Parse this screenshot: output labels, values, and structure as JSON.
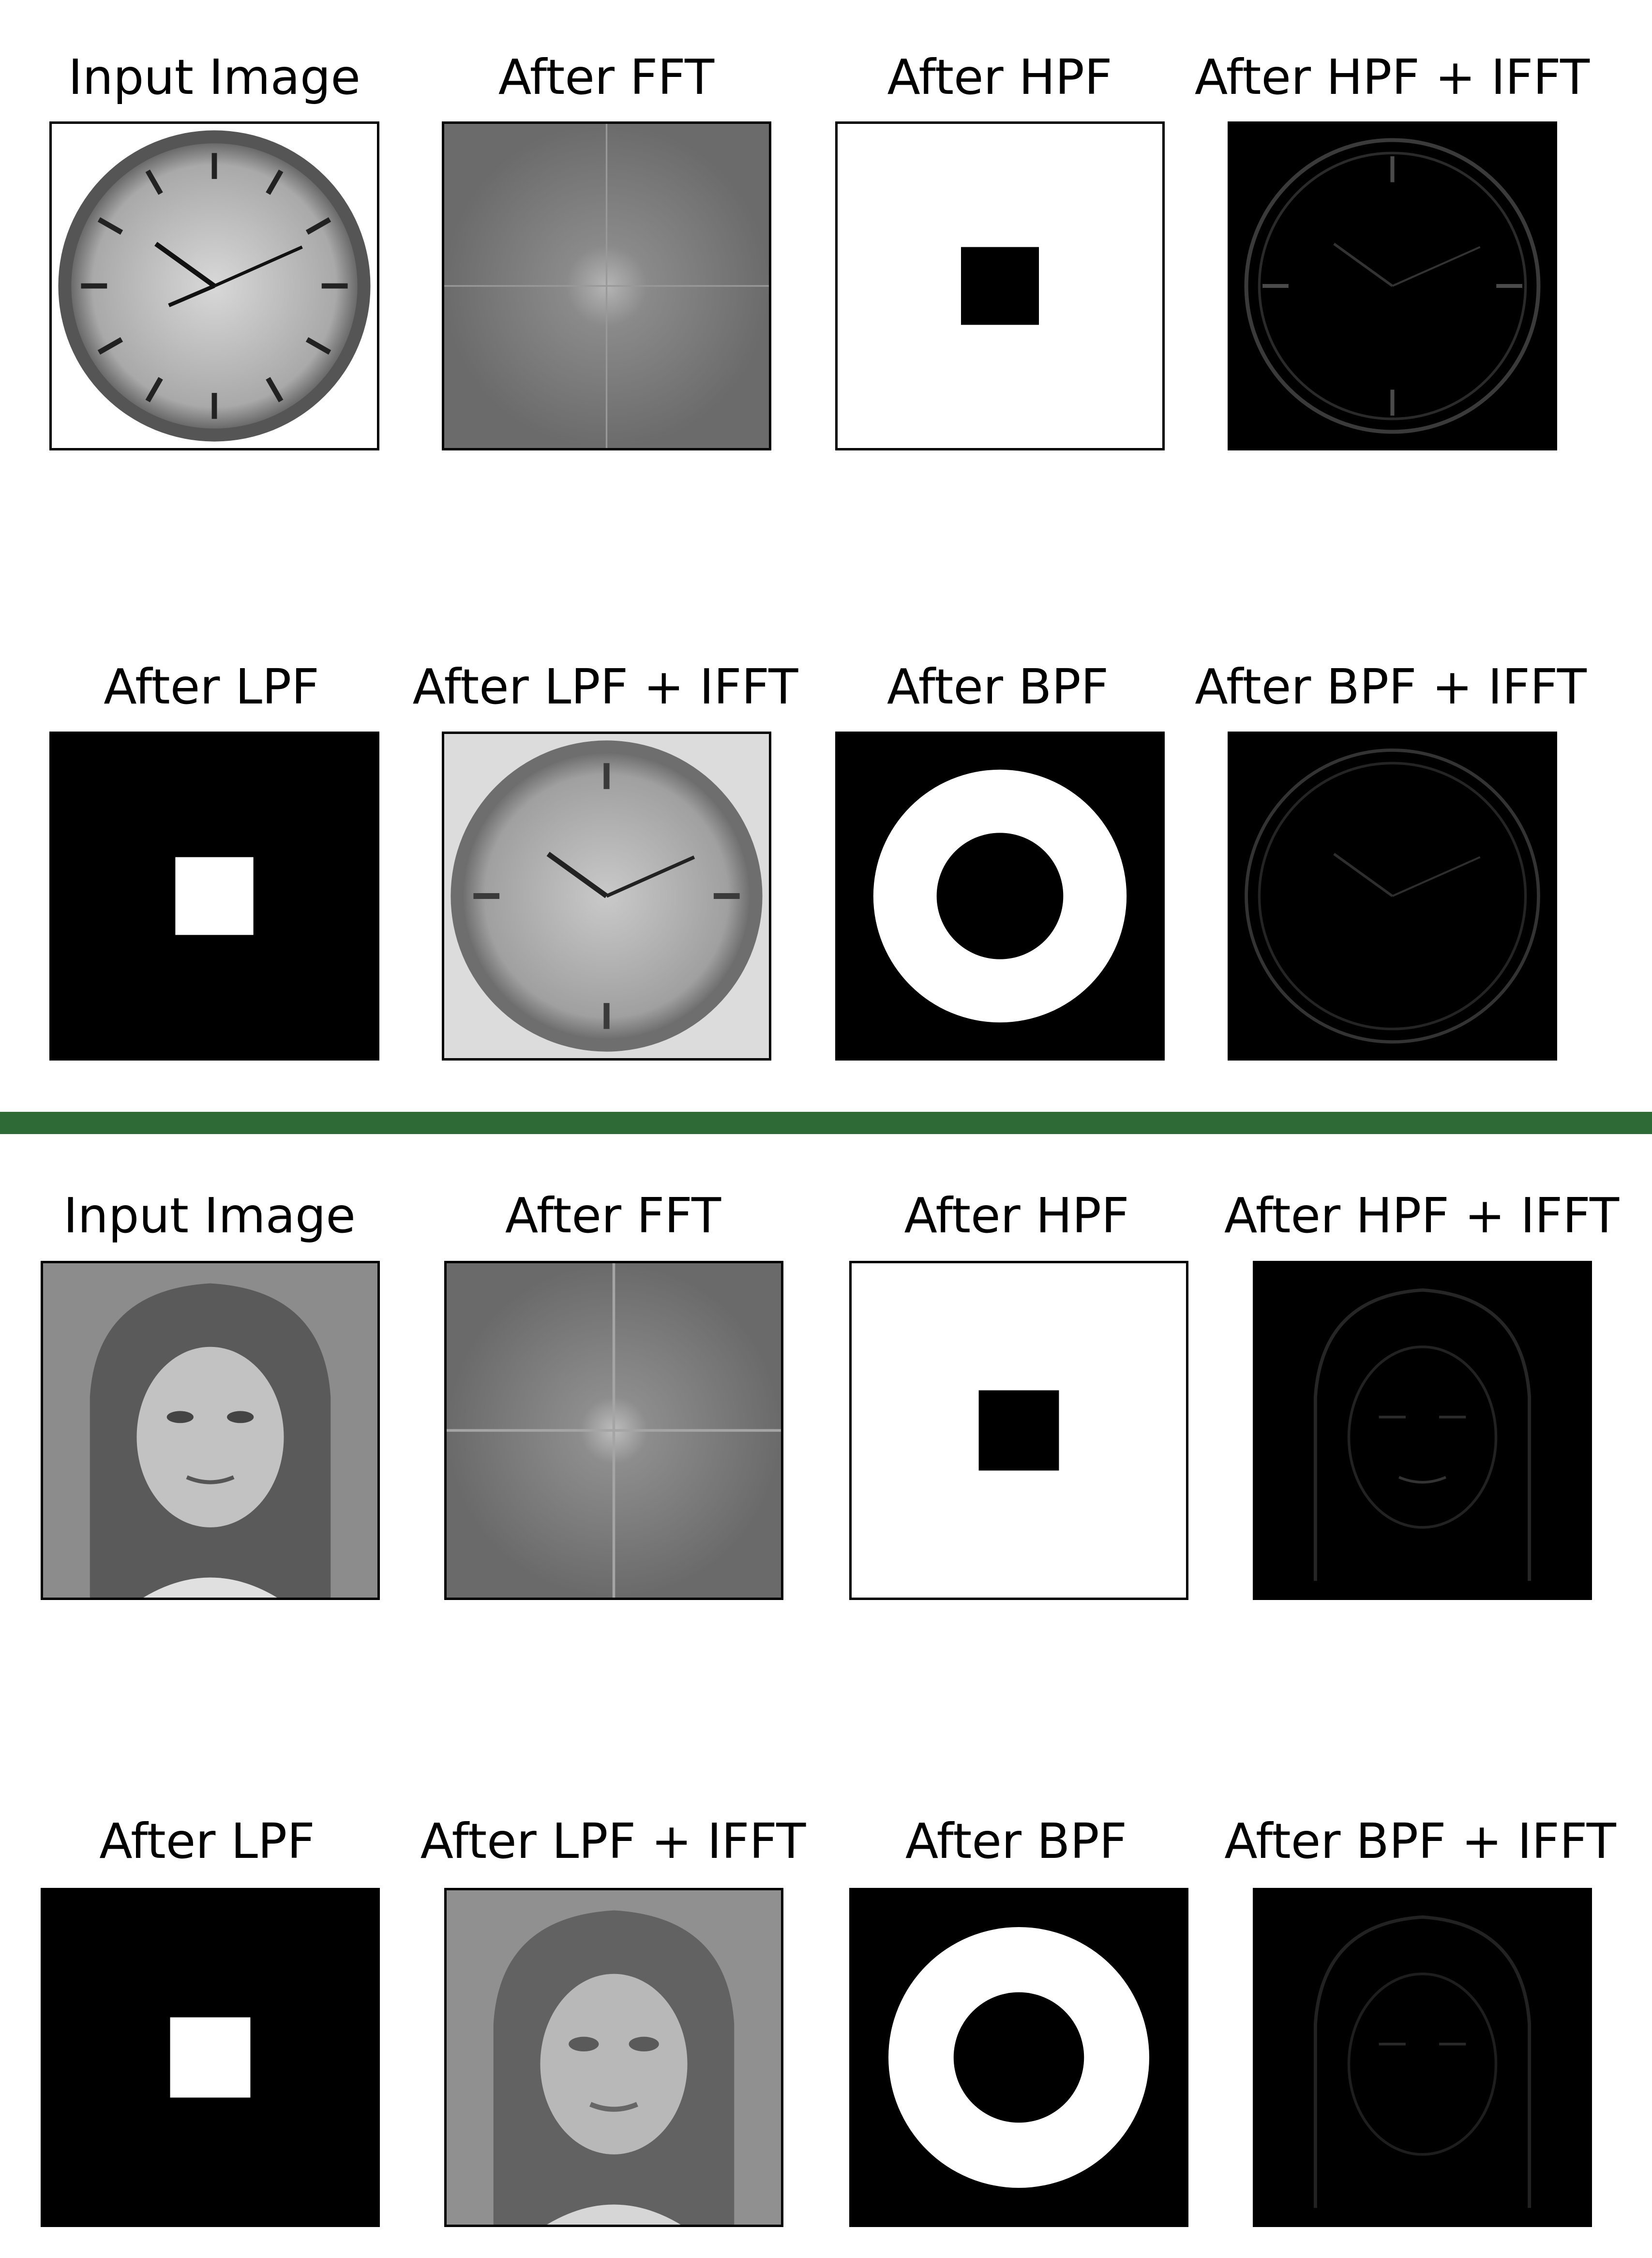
{
  "accent_color": "#2d6a35",
  "figures": [
    {
      "subject": "clock",
      "rows": [
        [
          "Input Image",
          "After FFT",
          "After HPF",
          "After HPF + IFFT"
        ],
        [
          "After LPF",
          "After LPF + IFFT",
          "After BPF",
          "After BPF + IFFT"
        ]
      ]
    },
    {
      "subject": "face",
      "rows": [
        [
          "Input Image",
          "After FFT",
          "After HPF",
          "After HPF + IFFT"
        ],
        [
          "After LPF",
          "After LPF + IFFT",
          "After BPF",
          "After BPF + IFFT"
        ]
      ]
    }
  ]
}
